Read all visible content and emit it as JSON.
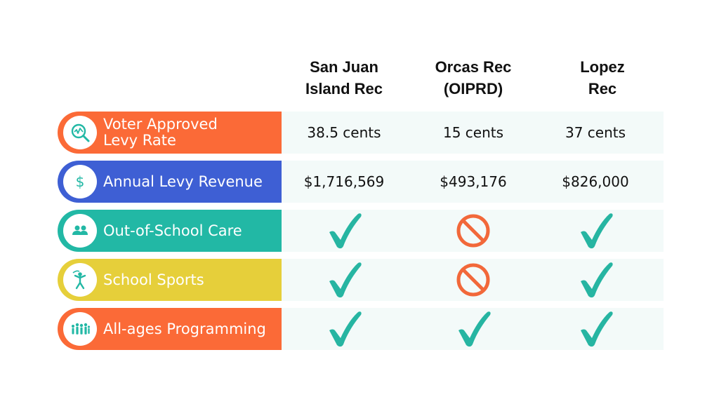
{
  "columns": [
    "San Juan\nIsland Rec",
    "Orcas Rec\n(OIPRD)",
    "Lopez\nRec"
  ],
  "rows": [
    {
      "label": "Voter Approved\nLevy Rate",
      "icon": "chart-magnifier-icon",
      "color": "#fb6a37",
      "cells": [
        {
          "type": "text",
          "value": "38.5 cents"
        },
        {
          "type": "text",
          "value": "15 cents"
        },
        {
          "type": "text",
          "value": "37 cents"
        }
      ]
    },
    {
      "label": "Annual Levy Revenue",
      "icon": "dollar-icon",
      "color": "#3e5fd4",
      "cells": [
        {
          "type": "text",
          "value": "$1,716,569"
        },
        {
          "type": "text",
          "value": "$493,176"
        },
        {
          "type": "text",
          "value": "$826,000"
        }
      ]
    },
    {
      "label": "Out-of-School Care",
      "icon": "people-icon",
      "color": "#22b8a5",
      "cells": [
        {
          "type": "check"
        },
        {
          "type": "no"
        },
        {
          "type": "check"
        }
      ]
    },
    {
      "label": "School Sports",
      "icon": "athlete-icon",
      "color": "#e6cf3a",
      "cells": [
        {
          "type": "check"
        },
        {
          "type": "no"
        },
        {
          "type": "check"
        }
      ]
    },
    {
      "label": "All-ages Programming",
      "icon": "crowd-icon",
      "color": "#fb6a37",
      "cells": [
        {
          "type": "check"
        },
        {
          "type": "check"
        },
        {
          "type": "check"
        }
      ]
    }
  ],
  "colors": {
    "check": "#26b5a2",
    "no": "#f2683a",
    "row_background": "#f3faf9"
  }
}
